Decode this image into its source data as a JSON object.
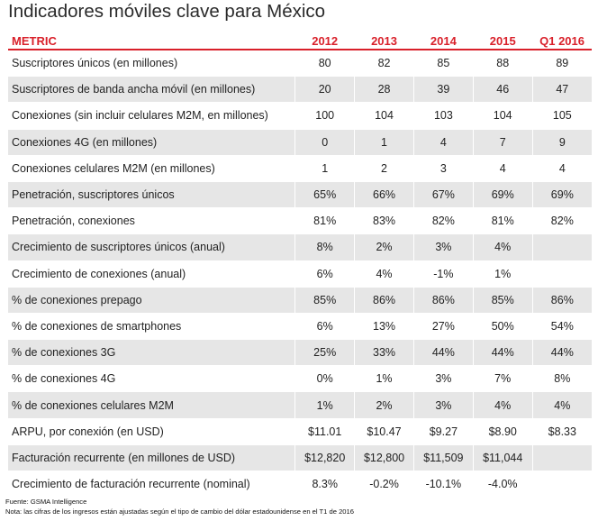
{
  "title": "Indicadores móviles clave para México",
  "table": {
    "headers": [
      "METRIC",
      "2012",
      "2013",
      "2014",
      "2015",
      "Q1 2016"
    ],
    "rows": [
      {
        "label": "Suscriptores únicos (en millones)",
        "values": [
          "80",
          "82",
          "85",
          "88",
          "89"
        ]
      },
      {
        "label": "Suscriptores de banda ancha móvil (en millones)",
        "values": [
          "20",
          "28",
          "39",
          "46",
          "47"
        ]
      },
      {
        "label": "Conexiones (sin incluir celulares M2M, en millones)",
        "values": [
          "100",
          "104",
          "103",
          "104",
          "105"
        ]
      },
      {
        "label": "Conexiones 4G (en millones)",
        "values": [
          "0",
          "1",
          "4",
          "7",
          "9"
        ]
      },
      {
        "label": "Conexiones celulares M2M (en millones)",
        "values": [
          "1",
          "2",
          "3",
          "4",
          "4"
        ]
      },
      {
        "label": "Penetración, suscriptores únicos",
        "values": [
          "65%",
          "66%",
          "67%",
          "69%",
          "69%"
        ]
      },
      {
        "label": "Penetración, conexiones",
        "values": [
          "81%",
          "83%",
          "82%",
          "81%",
          "82%"
        ]
      },
      {
        "label": "Crecimiento de suscriptores únicos (anual)",
        "values": [
          "8%",
          "2%",
          "3%",
          "4%",
          ""
        ]
      },
      {
        "label": "Crecimiento de conexiones (anual)",
        "values": [
          "6%",
          "4%",
          "-1%",
          "1%",
          ""
        ]
      },
      {
        "label": "% de conexiones prepago",
        "values": [
          "85%",
          "86%",
          "86%",
          "85%",
          "86%"
        ]
      },
      {
        "label": "% de conexiones de smartphones",
        "values": [
          "6%",
          "13%",
          "27%",
          "50%",
          "54%"
        ]
      },
      {
        "label": "% de conexiones 3G",
        "values": [
          "25%",
          "33%",
          "44%",
          "44%",
          "44%"
        ]
      },
      {
        "label": "% de conexiones 4G",
        "values": [
          "0%",
          "1%",
          "3%",
          "7%",
          "8%"
        ]
      },
      {
        "label": "% de conexiones celulares M2M",
        "values": [
          "1%",
          "2%",
          "3%",
          "4%",
          "4%"
        ]
      },
      {
        "label": "ARPU, por conexión (en USD)",
        "values": [
          "$11.01",
          "$10.47",
          "$9.27",
          "$8.90",
          "$8.33"
        ]
      },
      {
        "label": "Facturación recurrente (en millones de USD)",
        "values": [
          "$12,820",
          "$12,800",
          "$11,509",
          "$11,044",
          ""
        ]
      },
      {
        "label": "Crecimiento de facturación recurrente (nominal)",
        "values": [
          "8.3%",
          "-0.2%",
          "-10.1%",
          "-4.0%",
          ""
        ]
      }
    ]
  },
  "footer": {
    "source": "Fuente: GSMA Intelligence",
    "note": "Nota: las cifras de los ingresos están ajustadas según el tipo de cambio del dólar estadounidense en el T1 de 2016"
  },
  "colors": {
    "accent": "#d9202a",
    "stripe": "#e6e6e6"
  }
}
